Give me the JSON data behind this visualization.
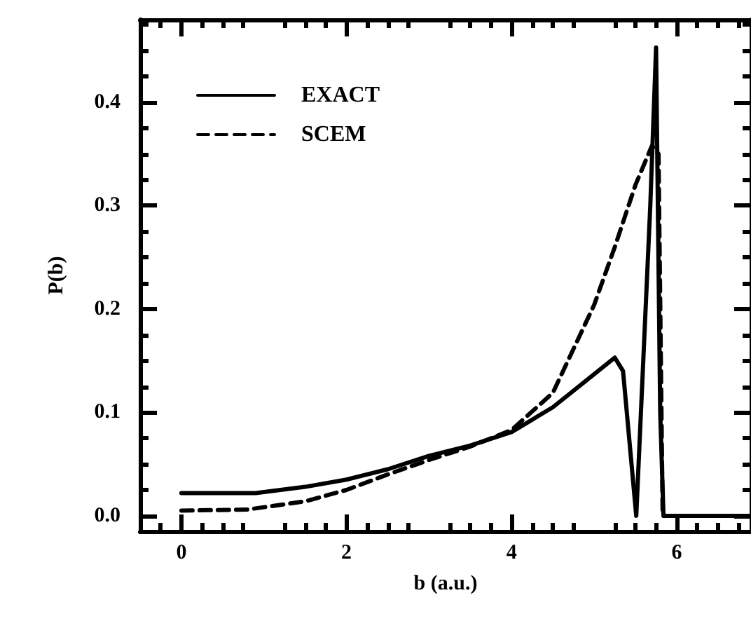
{
  "chart_data": {
    "type": "line",
    "xlabel": "b (a.u.)",
    "ylabel": "P(b)",
    "xlim": [
      -0.5,
      6.9
    ],
    "xticks": [
      0,
      2,
      4,
      6
    ],
    "ylim": [
      -0.015,
      0.48
    ],
    "yticks": [
      {
        "value": 0,
        "label": "0.0"
      },
      0.1,
      0.2,
      0.3,
      0.4
    ],
    "legend": "top left",
    "marker": "none",
    "grid": false,
    "series": [
      {
        "name": "EXACT",
        "color": "#000000",
        "line_style": "solid",
        "x": [
          0,
          0.9,
          1.5,
          2,
          2.5,
          3,
          3.5,
          4,
          4.5,
          5,
          5.25,
          5.35,
          5.51,
          5.68,
          5.75,
          5.8,
          5.84,
          6.2,
          6.9
        ],
        "values": [
          0.022,
          0.022,
          0.028,
          0.035,
          0.045,
          0.058,
          0.068,
          0.081,
          0.105,
          0.137,
          0.153,
          0.14,
          0.0,
          0.3,
          0.453,
          0.1,
          0.0,
          0.0,
          0.0
        ]
      },
      {
        "name": "SCEM",
        "color": "#000000",
        "line_style": "dashed",
        "x": [
          0,
          0.8,
          1.5,
          2,
          2.5,
          3,
          3.5,
          4,
          4.5,
          5,
          5.25,
          5.5,
          5.7,
          5.78,
          5.83,
          6.2,
          6.9
        ],
        "values": [
          0.005,
          0.006,
          0.014,
          0.025,
          0.04,
          0.054,
          0.067,
          0.083,
          0.119,
          0.204,
          0.26,
          0.32,
          0.358,
          0.35,
          0.0,
          0.0,
          0.0
        ]
      }
    ]
  }
}
